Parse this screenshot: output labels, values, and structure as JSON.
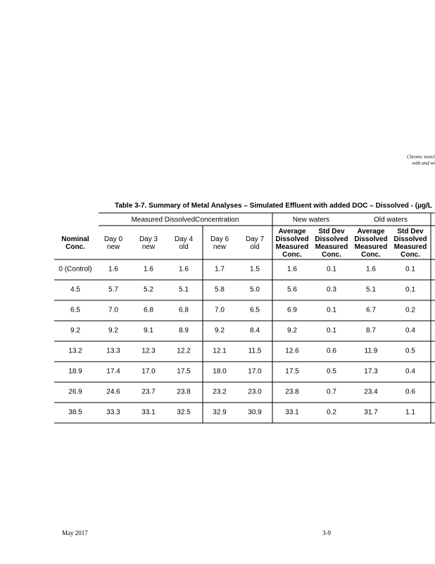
{
  "header": {
    "lines": [
      "Chronic toxici",
      "with and wi"
    ]
  },
  "table": {
    "title": "Table 3-7. Summary of Metal Analyses – Simulated Effluent with added DOC – Dissolved - (µg/L",
    "group_headers": [
      "Measured DissolvedConcentration",
      "New waters",
      "Old waters"
    ],
    "columns": [
      [
        "Nominal",
        "Conc."
      ],
      [
        "Day 0",
        "new"
      ],
      [
        "Day 3",
        "new"
      ],
      [
        "Day 4",
        "old"
      ],
      [
        "Day 6",
        "new"
      ],
      [
        "Day 7",
        "old"
      ],
      [
        "Average",
        "Dissolved",
        "Measured",
        "Conc."
      ],
      [
        "Std Dev",
        "Dissolved",
        "Measured",
        "Conc."
      ],
      [
        "Average",
        "Dissolved",
        "Measured",
        "Conc."
      ],
      [
        "Std Dev",
        "Dissolved",
        "Measured",
        "Conc."
      ]
    ],
    "rows": [
      [
        "0 (Control)",
        "1.6",
        "1.6",
        "1.6",
        "1.7",
        "1.5",
        "1.6",
        "0.1",
        "1.6",
        "0.1"
      ],
      [
        "4.5",
        "5.7",
        "5.2",
        "5.1",
        "5.8",
        "5.0",
        "5.6",
        "0.3",
        "5.1",
        "0.1"
      ],
      [
        "6.5",
        "7.0",
        "6.8",
        "6.8",
        "7.0",
        "6.5",
        "6.9",
        "0.1",
        "6.7",
        "0.2"
      ],
      [
        "9.2",
        "9.2",
        "9.1",
        "8.9",
        "9.2",
        "8.4",
        "9.2",
        "0.1",
        "8.7",
        "0.4"
      ],
      [
        "13.2",
        "13.3",
        "12.3",
        "12.2",
        "12.1",
        "11.5",
        "12.6",
        "0.6",
        "11.9",
        "0.5"
      ],
      [
        "18.9",
        "17.4",
        "17.0",
        "17.5",
        "18.0",
        "17.0",
        "17.5",
        "0.5",
        "17.3",
        "0.4"
      ],
      [
        "26.9",
        "24.6",
        "23.7",
        "23.8",
        "23.2",
        "23.0",
        "23.8",
        "0.7",
        "23.4",
        "0.6"
      ],
      [
        "38.5",
        "33.3",
        "33.1",
        "32.5",
        "32.9",
        "30.9",
        "33.1",
        "0.2",
        "31.7",
        "1.1"
      ]
    ]
  },
  "footer": {
    "date": "May 2017",
    "page": "3-9"
  }
}
